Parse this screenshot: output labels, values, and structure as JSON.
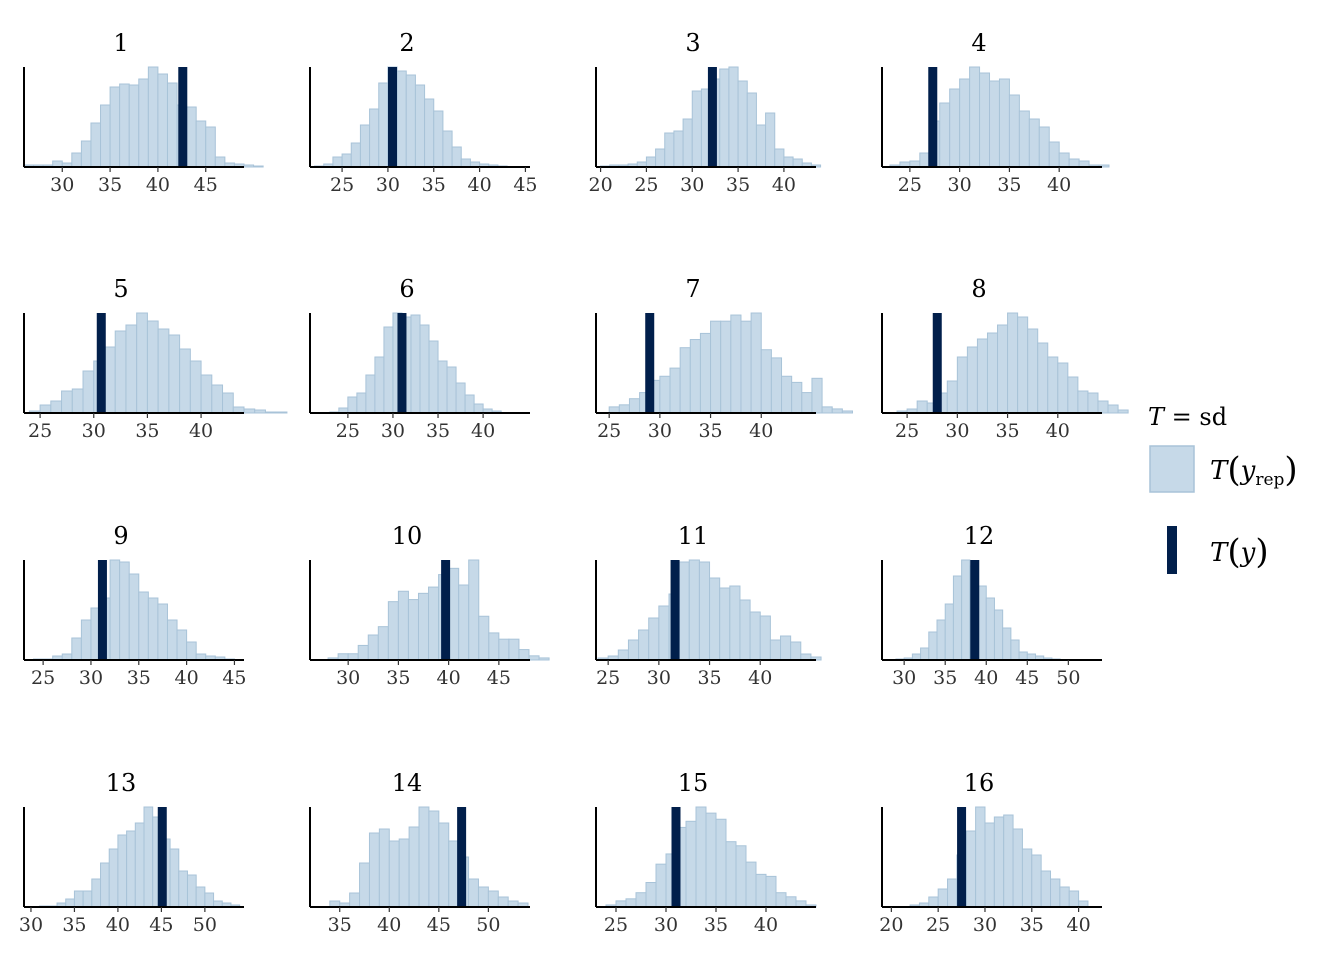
{
  "chart_data": {
    "type": "histogram-grid",
    "statistic": "sd",
    "colors": {
      "rep_fill": "#c6d9e8",
      "rep_edge": "#a8c3d8",
      "observed": "#011f4b"
    },
    "legend": {
      "title": "T = sd",
      "items": [
        "T(y_rep)",
        "T(y)"
      ]
    },
    "panels": [
      {
        "title": "1",
        "ticks": [
          30,
          35,
          40,
          45
        ],
        "xlim": [
          26,
          49
        ],
        "observed": 42.6,
        "bins": [
          {
            "start": 26,
            "width": 1
          },
          {
            "start": 27,
            "width": 1
          }
        ],
        "counts": [
          0.02,
          0.02,
          0.02,
          0.06,
          0.04,
          0.14,
          0.26,
          0.44,
          0.62,
          0.8,
          0.83,
          0.82,
          0.88,
          1.0,
          0.93,
          0.84,
          0.62,
          0.6,
          0.46,
          0.4,
          0.1,
          0.04,
          0.03,
          0.02,
          0.01
        ]
      },
      {
        "title": "2",
        "ticks": [
          25,
          30,
          35,
          40,
          45
        ],
        "xlim": [
          21.5,
          45.5
        ],
        "observed": 30.5,
        "bins": [
          {
            "start": 22,
            "width": 1
          }
        ],
        "counts": [
          0.01,
          0.03,
          0.1,
          0.13,
          0.24,
          0.42,
          0.58,
          0.84,
          1.0,
          0.96,
          0.92,
          0.82,
          0.68,
          0.56,
          0.36,
          0.2,
          0.08,
          0.05,
          0.03,
          0.02,
          0.01
        ]
      },
      {
        "title": "3",
        "ticks": [
          20,
          25,
          30,
          35,
          40
        ],
        "xlim": [
          19.5,
          43.5
        ],
        "observed": 32.2,
        "bins": [
          {
            "start": 20,
            "width": 1
          }
        ],
        "counts": [
          0.01,
          0.02,
          0.02,
          0.03,
          0.05,
          0.1,
          0.18,
          0.34,
          0.36,
          0.48,
          0.76,
          0.78,
          0.88,
          0.98,
          1.0,
          0.86,
          0.74,
          0.42,
          0.54,
          0.18,
          0.1,
          0.08,
          0.04,
          0.02
        ]
      },
      {
        "title": "4",
        "ticks": [
          25,
          30,
          35,
          40
        ],
        "xlim": [
          22.2,
          44.3
        ],
        "observed": 27.3,
        "bins": [
          {
            "start": 23,
            "width": 1
          }
        ],
        "counts": [
          0.02,
          0.05,
          0.06,
          0.14,
          0.46,
          0.64,
          0.78,
          0.88,
          1.0,
          0.94,
          0.86,
          0.88,
          0.72,
          0.56,
          0.48,
          0.4,
          0.25,
          0.14,
          0.08,
          0.06,
          0.02,
          0.02
        ]
      },
      {
        "title": "5",
        "ticks": [
          25,
          30,
          35,
          40
        ],
        "xlim": [
          23.5,
          44
        ],
        "observed": 30.7,
        "bins": [
          {
            "start": 24,
            "width": 1
          }
        ],
        "counts": [
          0.02,
          0.08,
          0.12,
          0.22,
          0.24,
          0.42,
          0.52,
          0.66,
          0.82,
          0.88,
          1.0,
          0.92,
          0.84,
          0.78,
          0.64,
          0.52,
          0.38,
          0.28,
          0.2,
          0.06,
          0.04,
          0.03,
          0.01,
          0.01
        ]
      },
      {
        "title": "6",
        "ticks": [
          25,
          30,
          35,
          40
        ],
        "xlim": [
          20.8,
          45.2
        ],
        "observed": 31.0,
        "bins": [
          {
            "start": 23,
            "width": 1
          }
        ],
        "counts": [
          0.01,
          0.05,
          0.16,
          0.2,
          0.38,
          0.56,
          0.86,
          1.0,
          0.96,
          0.98,
          0.88,
          0.72,
          0.52,
          0.46,
          0.3,
          0.18,
          0.09,
          0.04,
          0.02
        ]
      },
      {
        "title": "7",
        "ticks": [
          25,
          30,
          35,
          40
        ],
        "xlim": [
          23.7,
          45.4
        ],
        "observed": 29.0,
        "bins": [
          {
            "start": 25,
            "width": 1
          }
        ],
        "counts": [
          0.06,
          0.08,
          0.14,
          0.2,
          0.32,
          0.36,
          0.44,
          0.64,
          0.72,
          0.78,
          0.9,
          0.9,
          0.96,
          0.9,
          0.98,
          0.62,
          0.54,
          0.36,
          0.3,
          0.2,
          0.34,
          0.06,
          0.04,
          0.02
        ]
      },
      {
        "title": "8",
        "ticks": [
          25,
          30,
          35,
          40
        ],
        "xlim": [
          22.5,
          44.4
        ],
        "observed": 28.0,
        "bins": [
          {
            "start": 24,
            "width": 1
          }
        ],
        "counts": [
          0.02,
          0.04,
          0.12,
          0.1,
          0.2,
          0.32,
          0.56,
          0.66,
          0.74,
          0.8,
          0.88,
          1.0,
          0.96,
          0.84,
          0.7,
          0.56,
          0.5,
          0.36,
          0.22,
          0.2,
          0.12,
          0.08,
          0.03
        ]
      },
      {
        "title": "9",
        "ticks": [
          25,
          30,
          35,
          40,
          45
        ],
        "xlim": [
          23,
          46
        ],
        "observed": 31.2,
        "bins": [
          {
            "start": 24,
            "width": 1
          }
        ],
        "counts": [
          0.01,
          0.01,
          0.04,
          0.06,
          0.22,
          0.4,
          0.52,
          0.62,
          1.0,
          0.98,
          0.86,
          0.68,
          0.62,
          0.56,
          0.4,
          0.3,
          0.18,
          0.06,
          0.04,
          0.03,
          0.01
        ]
      },
      {
        "title": "10",
        "ticks": [
          30,
          35,
          40,
          45
        ],
        "xlim": [
          26.2,
          48.1
        ],
        "observed": 39.7,
        "bins": [
          {
            "start": 28,
            "width": 1
          }
        ],
        "counts": [
          0.02,
          0.06,
          0.06,
          0.14,
          0.24,
          0.32,
          0.56,
          0.66,
          0.58,
          0.64,
          0.7,
          0.82,
          0.88,
          0.72,
          0.96,
          0.42,
          0.26,
          0.2,
          0.2,
          0.1,
          0.04,
          0.02
        ]
      },
      {
        "title": "11",
        "ticks": [
          25,
          30,
          35,
          40
        ],
        "xlim": [
          23.8,
          45.5
        ],
        "observed": 31.6,
        "bins": [
          {
            "start": 24,
            "width": 1
          }
        ],
        "counts": [
          0.02,
          0.04,
          0.1,
          0.2,
          0.3,
          0.42,
          0.54,
          0.66,
          0.98,
          1.0,
          0.98,
          0.82,
          0.72,
          0.74,
          0.6,
          0.48,
          0.44,
          0.2,
          0.24,
          0.18,
          0.06,
          0.03
        ]
      },
      {
        "title": "12",
        "ticks": [
          30,
          35,
          40,
          45,
          50
        ],
        "xlim": [
          27.3,
          54.1
        ],
        "observed": 38.6,
        "bins": [
          {
            "start": 29,
            "width": 1
          }
        ],
        "counts": [
          0.01,
          0.02,
          0.06,
          0.12,
          0.28,
          0.4,
          0.56,
          0.84,
          1.0,
          0.94,
          0.74,
          0.62,
          0.5,
          0.32,
          0.2,
          0.08,
          0.06,
          0.04,
          0.02,
          0.01
        ]
      },
      {
        "title": "13",
        "ticks": [
          30,
          35,
          40,
          45,
          50
        ],
        "xlim": [
          29.2,
          54.5
        ],
        "observed": 45.1,
        "bins": [
          {
            "start": 31,
            "width": 1
          }
        ],
        "counts": [
          0.01,
          0.01,
          0.04,
          0.08,
          0.16,
          0.16,
          0.28,
          0.44,
          0.58,
          0.72,
          0.76,
          0.84,
          1.0,
          0.9,
          0.68,
          0.58,
          0.36,
          0.32,
          0.2,
          0.14,
          0.06,
          0.04,
          0.02
        ]
      },
      {
        "title": "14",
        "ticks": [
          35,
          40,
          45,
          50
        ],
        "xlim": [
          32,
          54.2
        ],
        "observed": 47.3,
        "bins": [
          {
            "start": 34,
            "width": 1
          }
        ],
        "counts": [
          0.06,
          0.04,
          0.14,
          0.44,
          0.74,
          0.78,
          0.66,
          0.68,
          0.8,
          1.0,
          0.96,
          0.84,
          0.66,
          0.5,
          0.28,
          0.2,
          0.16,
          0.1,
          0.06,
          0.04
        ]
      },
      {
        "title": "15",
        "ticks": [
          25,
          30,
          35,
          40
        ],
        "xlim": [
          23,
          45
        ],
        "observed": 31.0,
        "bins": [
          {
            "start": 24,
            "width": 1
          }
        ],
        "counts": [
          0.02,
          0.06,
          0.08,
          0.14,
          0.24,
          0.42,
          0.52,
          0.78,
          0.84,
          0.98,
          0.92,
          0.86,
          0.64,
          0.6,
          0.44,
          0.32,
          0.3,
          0.14,
          0.1,
          0.06,
          0.02
        ]
      },
      {
        "title": "16",
        "ticks": [
          20,
          25,
          30,
          35,
          40
        ],
        "xlim": [
          19,
          42.5
        ],
        "observed": 27.5,
        "bins": [
          {
            "start": 22,
            "width": 1
          }
        ],
        "counts": [
          0.02,
          0.04,
          0.1,
          0.18,
          0.28,
          0.52,
          0.76,
          1.0,
          0.84,
          0.9,
          0.92,
          0.78,
          0.58,
          0.52,
          0.36,
          0.28,
          0.2,
          0.16,
          0.06
        ]
      }
    ]
  }
}
